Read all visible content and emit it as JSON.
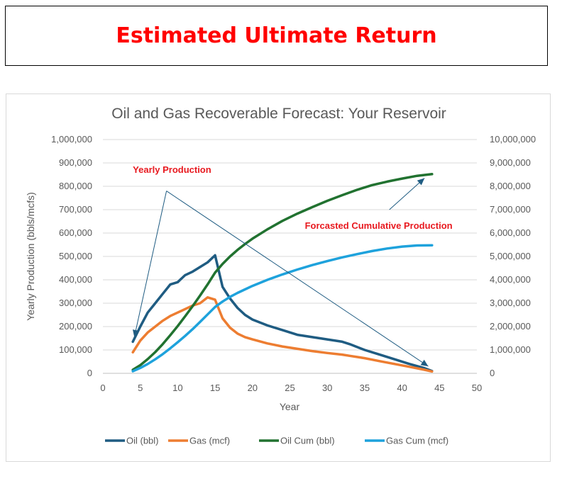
{
  "banner": {
    "title": "Estimated Ultimate Return"
  },
  "chart_data": {
    "type": "line",
    "title": "Oil and Gas Recoverable Forecast: Your Reservoir",
    "xlabel": "Year",
    "ylabel": "Yearly Production (bbls/mcfs)",
    "y2label": "",
    "xlim": [
      0,
      50
    ],
    "ylim": [
      0,
      1000000
    ],
    "y2lim": [
      0,
      10000000
    ],
    "x_ticks": [
      "0",
      "5",
      "10",
      "15",
      "20",
      "25",
      "30",
      "35",
      "40",
      "45",
      "50"
    ],
    "y_ticks": [
      "0",
      "100,000",
      "200,000",
      "300,000",
      "400,000",
      "500,000",
      "600,000",
      "700,000",
      "800,000",
      "900,000",
      "1,000,000"
    ],
    "y2_ticks": [
      "0",
      "1,000,000",
      "2,000,000",
      "3,000,000",
      "4,000,000",
      "5,000,000",
      "6,000,000",
      "7,000,000",
      "8,000,000",
      "9,000,000",
      "10,000,000"
    ],
    "grid": "horizontal",
    "legend_position": "bottom",
    "series": [
      {
        "name": "Oil (bbl)",
        "axis": "left",
        "color": "#1f5c82",
        "x": [
          4,
          5,
          6,
          7,
          8,
          9,
          10,
          11,
          12,
          13,
          14,
          15,
          16,
          17,
          18,
          19,
          20,
          22,
          24,
          26,
          28,
          30,
          32,
          33,
          35,
          37,
          39,
          41,
          43,
          44
        ],
        "y": [
          135000,
          200000,
          260000,
          300000,
          340000,
          380000,
          390000,
          420000,
          435000,
          455000,
          475000,
          505000,
          370000,
          320000,
          280000,
          250000,
          230000,
          205000,
          185000,
          165000,
          155000,
          145000,
          135000,
          125000,
          100000,
          80000,
          60000,
          40000,
          22000,
          10000
        ]
      },
      {
        "name": "Gas (mcf)",
        "axis": "left",
        "color": "#ed7d31",
        "x": [
          4,
          5,
          6,
          7,
          8,
          9,
          10,
          11,
          12,
          13,
          14,
          15,
          16,
          17,
          18,
          19,
          20,
          22,
          24,
          26,
          28,
          30,
          32,
          33,
          35,
          37,
          39,
          41,
          43,
          44
        ],
        "y": [
          90000,
          140000,
          175000,
          200000,
          225000,
          245000,
          260000,
          275000,
          290000,
          300000,
          325000,
          315000,
          235000,
          195000,
          170000,
          155000,
          145000,
          128000,
          115000,
          105000,
          95000,
          87000,
          80000,
          75000,
          65000,
          52000,
          40000,
          28000,
          15000,
          8000
        ]
      },
      {
        "name": "Oil Cum (bbl)",
        "axis": "right",
        "color": "#217230",
        "x": [
          4,
          5,
          6,
          7,
          8,
          9,
          10,
          11,
          12,
          13,
          14,
          15,
          16,
          17,
          18,
          19,
          20,
          22,
          24,
          26,
          28,
          30,
          32,
          34,
          36,
          38,
          40,
          42,
          44
        ],
        "y": [
          150000,
          350000,
          610000,
          910000,
          1250000,
          1630000,
          2020000,
          2440000,
          2875000,
          3330000,
          3805000,
          4310000,
          4680000,
          5000000,
          5280000,
          5530000,
          5760000,
          6160000,
          6520000,
          6830000,
          7110000,
          7380000,
          7620000,
          7850000,
          8050000,
          8200000,
          8330000,
          8450000,
          8520000
        ]
      },
      {
        "name": "Gas Cum (mcf)",
        "axis": "right",
        "color": "#1ea2dc",
        "x": [
          4,
          5,
          6,
          7,
          8,
          9,
          10,
          11,
          12,
          13,
          14,
          15,
          16,
          17,
          18,
          19,
          20,
          22,
          24,
          26,
          28,
          30,
          32,
          34,
          36,
          38,
          40,
          42,
          44
        ],
        "y": [
          90000,
          230000,
          400000,
          600000,
          820000,
          1070000,
          1330000,
          1600000,
          1890000,
          2200000,
          2520000,
          2840000,
          3070000,
          3270000,
          3440000,
          3590000,
          3740000,
          4000000,
          4230000,
          4440000,
          4630000,
          4800000,
          4960000,
          5100000,
          5230000,
          5340000,
          5420000,
          5470000,
          5480000
        ]
      }
    ],
    "annotations": [
      {
        "text": "Yearly Production",
        "at": [
          4,
          870000
        ]
      },
      {
        "text": "Forcasted Cumulative Production",
        "at": [
          27,
          630000
        ]
      }
    ],
    "arrows": [
      {
        "from": [
          8.5,
          780000
        ],
        "to": [
          4.2,
          155000
        ]
      },
      {
        "from": [
          8.5,
          780000
        ],
        "to": [
          43.5,
          30000
        ]
      },
      {
        "from": [
          38.3,
          700000
        ],
        "to": [
          43.0,
          835000
        ]
      }
    ]
  }
}
